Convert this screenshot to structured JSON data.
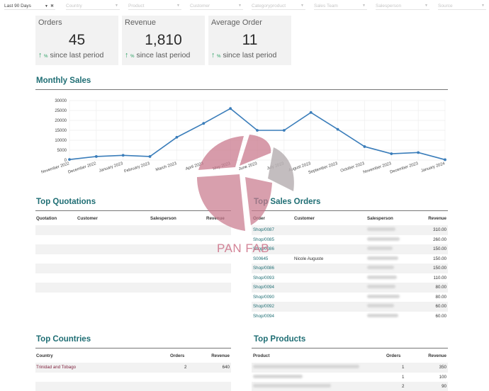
{
  "filters": {
    "date_range": "Last 90 Days",
    "clear_icon": "x-icon",
    "country": "Country",
    "product": "Product",
    "customer": "Customer",
    "category": "Categoryproduct",
    "sales_team": "Sales Team",
    "salesperson": "Salesperson",
    "source": "Source"
  },
  "kpis": [
    {
      "label": "Orders",
      "value": "45",
      "delta_pct": "%",
      "delta_text": "since last period"
    },
    {
      "label": "Revenue",
      "value": "1,810",
      "delta_pct": "%",
      "delta_text": "since last period"
    },
    {
      "label": "Average Order",
      "value": "11",
      "delta_pct": "%",
      "delta_text": "since last period"
    }
  ],
  "monthly_sales": {
    "title": "Monthly Sales"
  },
  "chart_data": {
    "type": "line",
    "categories": [
      "November 2022",
      "December 2022",
      "January 2023",
      "February 2023",
      "March 2023",
      "April 2023",
      "May 2023",
      "June 2023",
      "July 2023",
      "August 2023",
      "September 2023",
      "October 2023",
      "November 2023",
      "December 2023",
      "January 2024"
    ],
    "values": [
      300,
      1800,
      2400,
      1800,
      11500,
      18500,
      26000,
      15000,
      15000,
      24000,
      15500,
      6800,
      3200,
      3800,
      200
    ],
    "yticks": [
      "0",
      "5000",
      "10000",
      "15000",
      "20000",
      "25000",
      "30000"
    ],
    "ylim": [
      0,
      30000
    ],
    "grid": true,
    "line_color": "#3a7dba"
  },
  "top_quotations": {
    "title": "Top Quotations",
    "columns": [
      "Quotation",
      "Customer",
      "Salesperson",
      "Revenue"
    ],
    "row_count": 8
  },
  "top_sales_orders": {
    "title": "Top Sales Orders",
    "columns": [
      "Order",
      "Customer",
      "Salesperson",
      "Revenue"
    ],
    "rows": [
      {
        "order": "Shop/0087",
        "customer": "",
        "revenue": "310.00"
      },
      {
        "order": "Shop/0085",
        "customer": "",
        "revenue": "260.00"
      },
      {
        "order": "Shop/0086",
        "customer": "",
        "revenue": "150.00"
      },
      {
        "order": "S00645",
        "customer": "Nicole Auguste",
        "revenue": "150.00"
      },
      {
        "order": "Shop/0086",
        "customer": "",
        "revenue": "150.00"
      },
      {
        "order": "Shop/0093",
        "customer": "",
        "revenue": "110.00"
      },
      {
        "order": "Shop/0094",
        "customer": "",
        "revenue": "80.00"
      },
      {
        "order": "Shop/0090",
        "customer": "",
        "revenue": "80.00"
      },
      {
        "order": "Shop/0092",
        "customer": "",
        "revenue": "60.00"
      },
      {
        "order": "Shop/0094",
        "customer": "",
        "revenue": "60.00"
      }
    ]
  },
  "top_countries": {
    "title": "Top Countries",
    "columns": [
      "Country",
      "Orders",
      "Revenue"
    ],
    "rows": [
      {
        "country": "Trinidad and Tobago",
        "orders": "2",
        "revenue": "640"
      }
    ]
  },
  "top_products": {
    "title": "Top Products",
    "columns": [
      "Product",
      "Orders",
      "Revenue"
    ],
    "rows": [
      {
        "orders": "1",
        "revenue": "350"
      },
      {
        "orders": "1",
        "revenue": "100"
      },
      {
        "orders": "2",
        "revenue": "90"
      }
    ]
  },
  "watermark": {
    "text": "PAN FAB",
    "colors": [
      "#c97a8e",
      "#b8b1b4"
    ]
  }
}
